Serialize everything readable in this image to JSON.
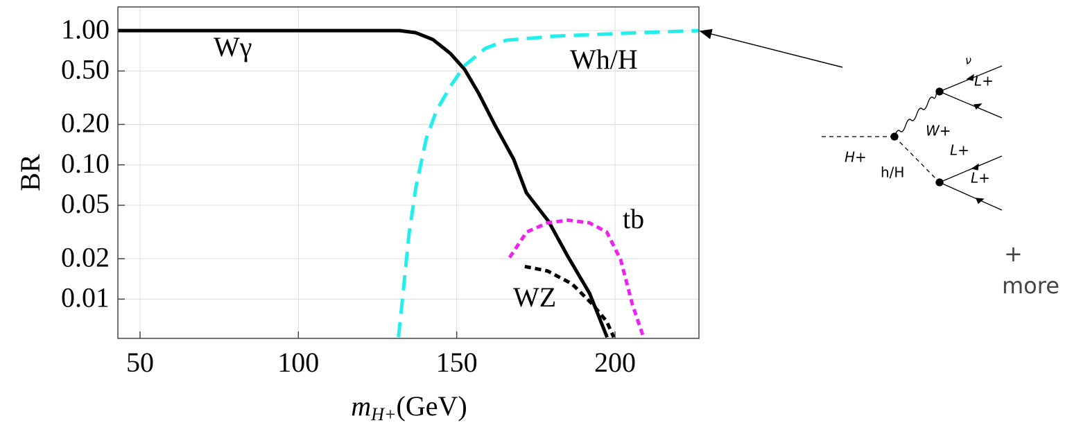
{
  "chart_data": {
    "type": "line",
    "y_label": "BR",
    "x_label": {
      "base": "m",
      "sub": "H+",
      "unit": "(GeV)"
    },
    "xlim": [
      43,
      226.5
    ],
    "ylim": [
      0.0051,
      1.5
    ],
    "log_y": true,
    "grid": true,
    "xticks": [
      50,
      100,
      150,
      200
    ],
    "yticks": [
      {
        "value": 1,
        "label": "1.00"
      },
      {
        "value": 0.5,
        "label": "0.50"
      },
      {
        "value": 0.2,
        "label": "0.20"
      },
      {
        "value": 0.1,
        "label": "0.10"
      },
      {
        "value": 0.05,
        "label": "0.05"
      },
      {
        "value": 0.02,
        "label": "0.02"
      },
      {
        "value": 0.01,
        "label": "0.01"
      }
    ],
    "series": [
      {
        "name": "Wγ",
        "color": "#000000",
        "dash": "solid",
        "x": [
          43,
          132,
          137,
          142.5,
          148,
          152.5,
          157,
          162,
          168,
          172,
          179,
          185,
          192,
          197.5
        ],
        "values": [
          1,
          1,
          0.965,
          0.857,
          0.676,
          0.514,
          0.339,
          0.199,
          0.11,
          0.062,
          0.038,
          0.021,
          0.011,
          0.0052
        ]
      },
      {
        "name": "Wh/H",
        "color": "#22eeee",
        "dash": "long",
        "x": [
          131.6,
          132.7,
          134.9,
          137.1,
          140.4,
          143.6,
          148,
          152.4,
          159,
          165.6,
          181,
          202.9,
          226.5
        ],
        "values": [
          0.0052,
          0.0091,
          0.0298,
          0.068,
          0.157,
          0.253,
          0.383,
          0.546,
          0.735,
          0.847,
          0.909,
          0.954,
          1
        ]
      },
      {
        "name": "tb",
        "color": "#ee22ee",
        "dash": "short",
        "x": [
          166.7,
          172.1,
          178.7,
          185.3,
          191.9,
          197.4,
          201.8,
          205.5,
          209
        ],
        "values": [
          0.0204,
          0.0316,
          0.037,
          0.0387,
          0.037,
          0.0316,
          0.0196,
          0.0091,
          0.0052
        ]
      },
      {
        "name": "WZ",
        "color": "#000000",
        "dash": "short",
        "x": [
          171.5,
          178.7,
          186.4,
          193,
          197.4,
          199.6
        ],
        "values": [
          0.0175,
          0.0162,
          0.013,
          0.0091,
          0.0068,
          0.0052
        ]
      }
    ]
  },
  "diagram": {
    "nu": "ν",
    "l1": "L+",
    "w": "W+",
    "l2": "L+",
    "h_plus": "H+",
    "hH": "h/H",
    "l3": "L+",
    "plus": "+",
    "more": "more"
  }
}
